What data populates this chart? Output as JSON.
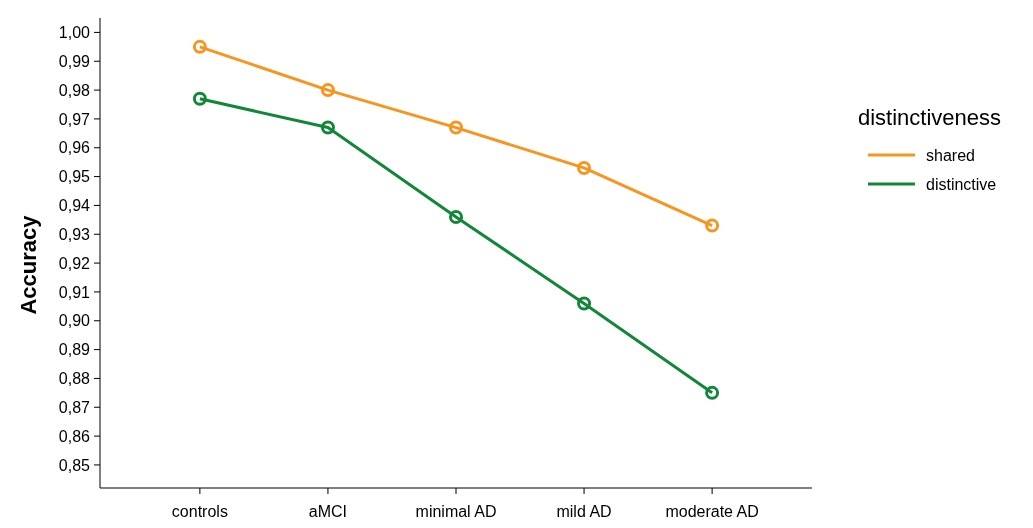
{
  "chart_data": {
    "type": "line",
    "ylabel": "Accuracy",
    "legend_title": "distinctiveness",
    "categories": [
      "controls",
      "aMCI",
      "minimal AD",
      "mild AD",
      "moderate AD"
    ],
    "series": [
      {
        "name": "shared",
        "color": "#f7951e",
        "values": [
          0.995,
          0.98,
          0.967,
          0.953,
          0.933
        ]
      },
      {
        "name": "distinctive",
        "color": "#12873a",
        "values": [
          0.977,
          0.967,
          0.936,
          0.906,
          0.875
        ]
      }
    ],
    "ylim": [
      0.842,
      1.005
    ],
    "yticks": [
      {
        "value": 0.85,
        "label": "0,85"
      },
      {
        "value": 0.86,
        "label": "0,86"
      },
      {
        "value": 0.87,
        "label": "0,87"
      },
      {
        "value": 0.88,
        "label": "0,88"
      },
      {
        "value": 0.89,
        "label": "0,89"
      },
      {
        "value": 0.9,
        "label": "0,90"
      },
      {
        "value": 0.91,
        "label": "0,91"
      },
      {
        "value": 0.92,
        "label": "0,92"
      },
      {
        "value": 0.93,
        "label": "0,93"
      },
      {
        "value": 0.94,
        "label": "0,94"
      },
      {
        "value": 0.95,
        "label": "0,95"
      },
      {
        "value": 0.96,
        "label": "0,96"
      },
      {
        "value": 0.97,
        "label": "0,97"
      },
      {
        "value": 0.98,
        "label": "0,98"
      },
      {
        "value": 0.99,
        "label": "0,99"
      },
      {
        "value": 1.0,
        "label": "1,00"
      }
    ],
    "marker": "circle",
    "line_style": "solid",
    "grid": false,
    "legend": "right"
  }
}
